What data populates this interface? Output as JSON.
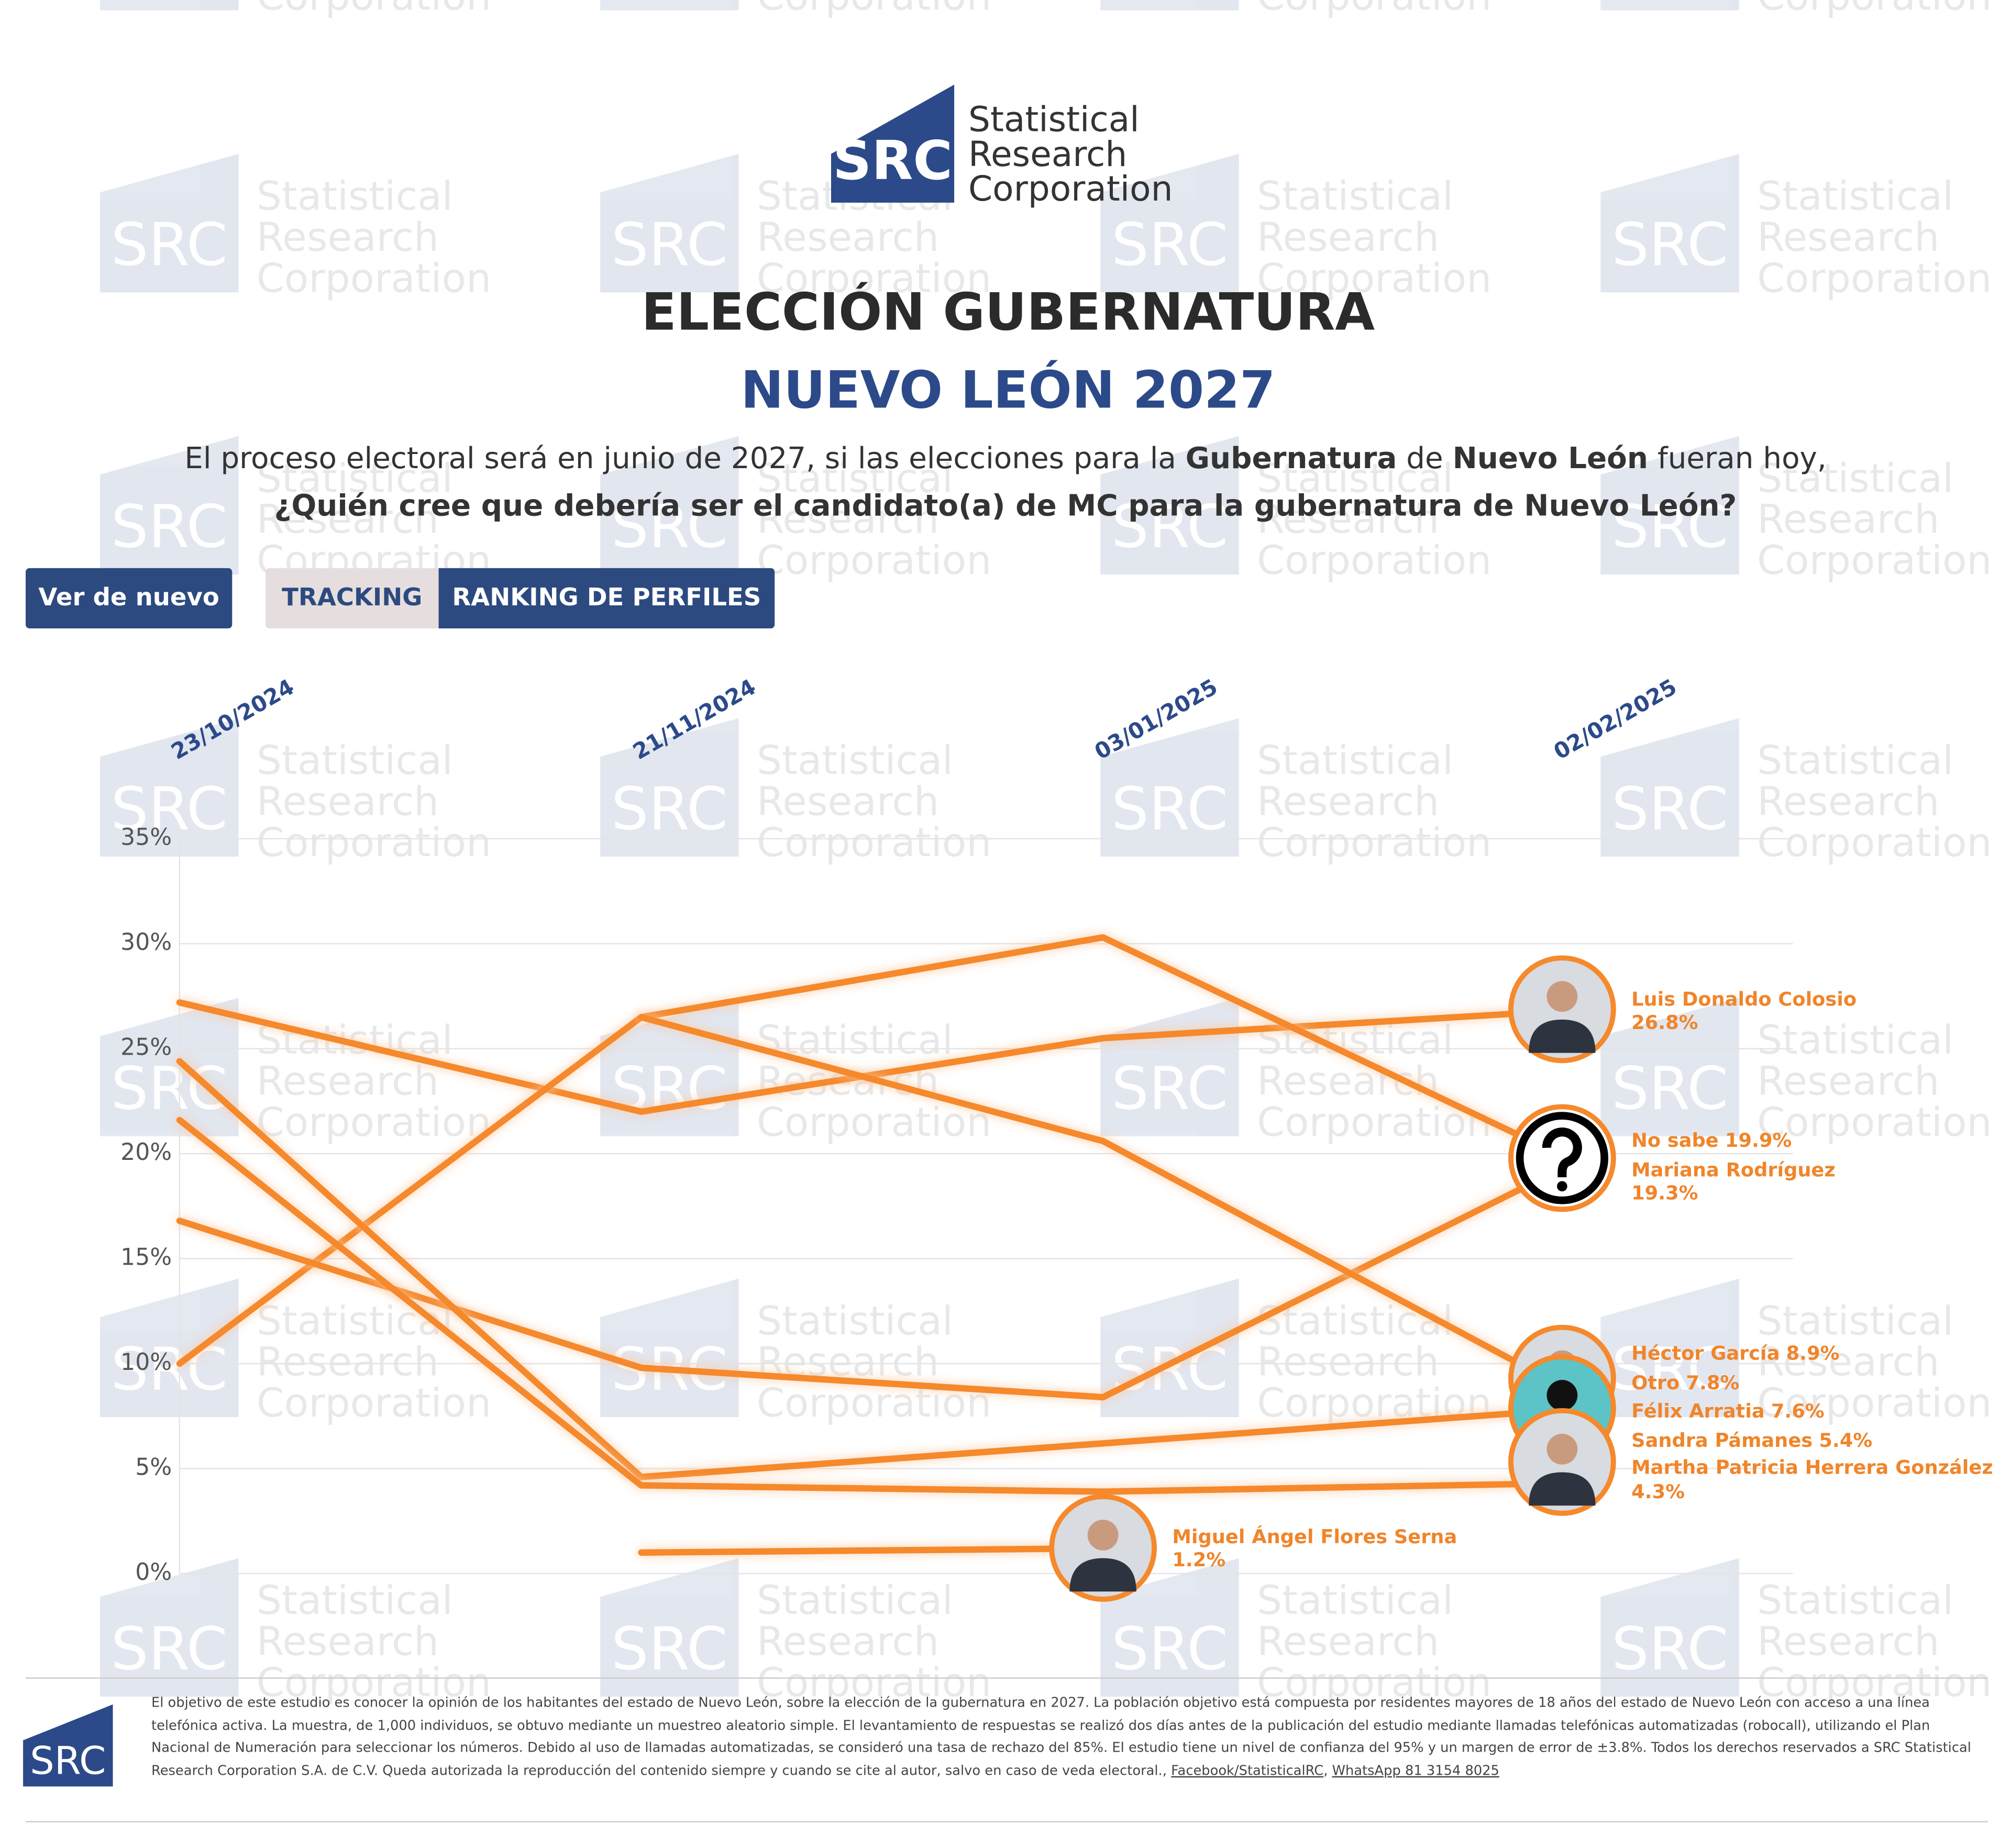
{
  "logo": {
    "mark": "SRC",
    "lines": [
      "Statistical",
      "Research",
      "Corporation"
    ]
  },
  "watermark": {
    "mark": "SRC",
    "lines": [
      "Statistical",
      "Research",
      "Corporation"
    ]
  },
  "buttons": {
    "replay": "Ver de nuevo",
    "tabs": [
      "TRACKING",
      "RANKING DE PERFILES"
    ]
  },
  "question": {
    "line1": [
      "El proceso electoral será en junio de 2027, si las elecciones para la ",
      "Gubernatura",
      " de ",
      "Nuevo León",
      " fueran hoy,"
    ],
    "line2": "¿Quién cree que debería ser el candidato(a) de MC para la gubernatura de Nuevo León?"
  },
  "chart_data": {
    "type": "line",
    "title": "ELECCIÓN GUBERNATURA",
    "subtitle": "NUEVO LEÓN 2027",
    "categories": [
      "23/10/2024",
      "21/11/2024",
      "03/01/2025",
      "02/02/2025"
    ],
    "ylim": [
      0,
      35
    ],
    "yticks": [
      {
        "value": 0,
        "label": "0%"
      },
      {
        "value": 5,
        "label": "5%"
      },
      {
        "value": 10,
        "label": "10%"
      },
      {
        "value": 15,
        "label": "15%"
      },
      {
        "value": 20,
        "label": "20%"
      },
      {
        "value": 25,
        "label": "25%"
      },
      {
        "value": 30,
        "label": "30%"
      },
      {
        "value": 35,
        "label": "35%"
      }
    ],
    "grid": true,
    "series": [
      {
        "name": "Luis Donaldo Colosio",
        "color": "#f5892c",
        "values": [
          27.2,
          22.0,
          25.5,
          26.8
        ],
        "value_labels": [
          null,
          null,
          null,
          "26.8%"
        ]
      },
      {
        "name": "No sabe",
        "color": "#f5892c",
        "values": [
          10.0,
          26.5,
          30.3,
          19.9
        ],
        "value_labels": [
          null,
          null,
          null,
          "19.9%"
        ]
      },
      {
        "name": "Mariana Rodríguez",
        "color": "#f5892c",
        "values": [
          16.8,
          9.8,
          8.4,
          19.3
        ],
        "value_labels": [
          null,
          null,
          null,
          "19.3%"
        ]
      },
      {
        "name": "Héctor García",
        "color": "#f5892c",
        "values": [
          null,
          26.5,
          20.6,
          8.9
        ],
        "value_labels": [
          null,
          null,
          null,
          "8.9%"
        ]
      },
      {
        "name": "Otro",
        "color": "#f5892c",
        "values": [
          24.4,
          4.6,
          6.2,
          7.8
        ],
        "value_labels": [
          null,
          null,
          null,
          "7.8%"
        ]
      },
      {
        "name": "Félix Arratia",
        "color": "#f5892c",
        "values": [
          null,
          null,
          null,
          7.6
        ],
        "value_labels": [
          null,
          null,
          null,
          "7.6%"
        ]
      },
      {
        "name": "Sandra Pámanes",
        "color": "#f5892c",
        "values": [
          null,
          null,
          null,
          5.4
        ],
        "value_labels": [
          null,
          null,
          null,
          "5.4%"
        ]
      },
      {
        "name": "Martha Patricia Herrera González",
        "color": "#f5892c",
        "values": [
          21.6,
          4.2,
          3.9,
          4.3
        ],
        "value_labels": [
          null,
          null,
          null,
          "4.3%"
        ]
      },
      {
        "name": "Miguel Ángel Flores Serna",
        "color": "#f5892c",
        "values": [
          null,
          1.0,
          1.2,
          null
        ],
        "value_labels": [
          null,
          null,
          "1.2%",
          null
        ]
      }
    ]
  },
  "footer": {
    "text": "El objetivo de este estudio es conocer la opinión de los habitantes del estado de Nuevo León, sobre la elección de la gubernatura en 2027. La población objetivo está compuesta por residentes mayores de 18 años del estado de Nuevo León con acceso a una línea telefónica activa. La muestra, de 1,000 individuos, se obtuvo mediante un muestreo aleatorio simple. El levantamiento de respuestas se realizó dos días antes de la publicación del estudio mediante llamadas telefónicas automatizadas (robocall), utilizando el Plan Nacional de Numeración para seleccionar los números. Debido al uso de llamadas automatizadas, se consideró una tasa de rechazo del 85%. El estudio tiene un nivel de confianza del 95% y un margen de error de ±3.8%. Todos los derechos reservados a SRC Statistical Research Corporation S.A. de C.V. Queda autorizada la reproducción del contenido siempre y cuando se cite al autor, salvo en caso de veda electoral.,",
    "links": [
      "Facebook/StatisticalRC",
      "WhatsApp 81 3154 8025"
    ],
    "separator": ", "
  }
}
